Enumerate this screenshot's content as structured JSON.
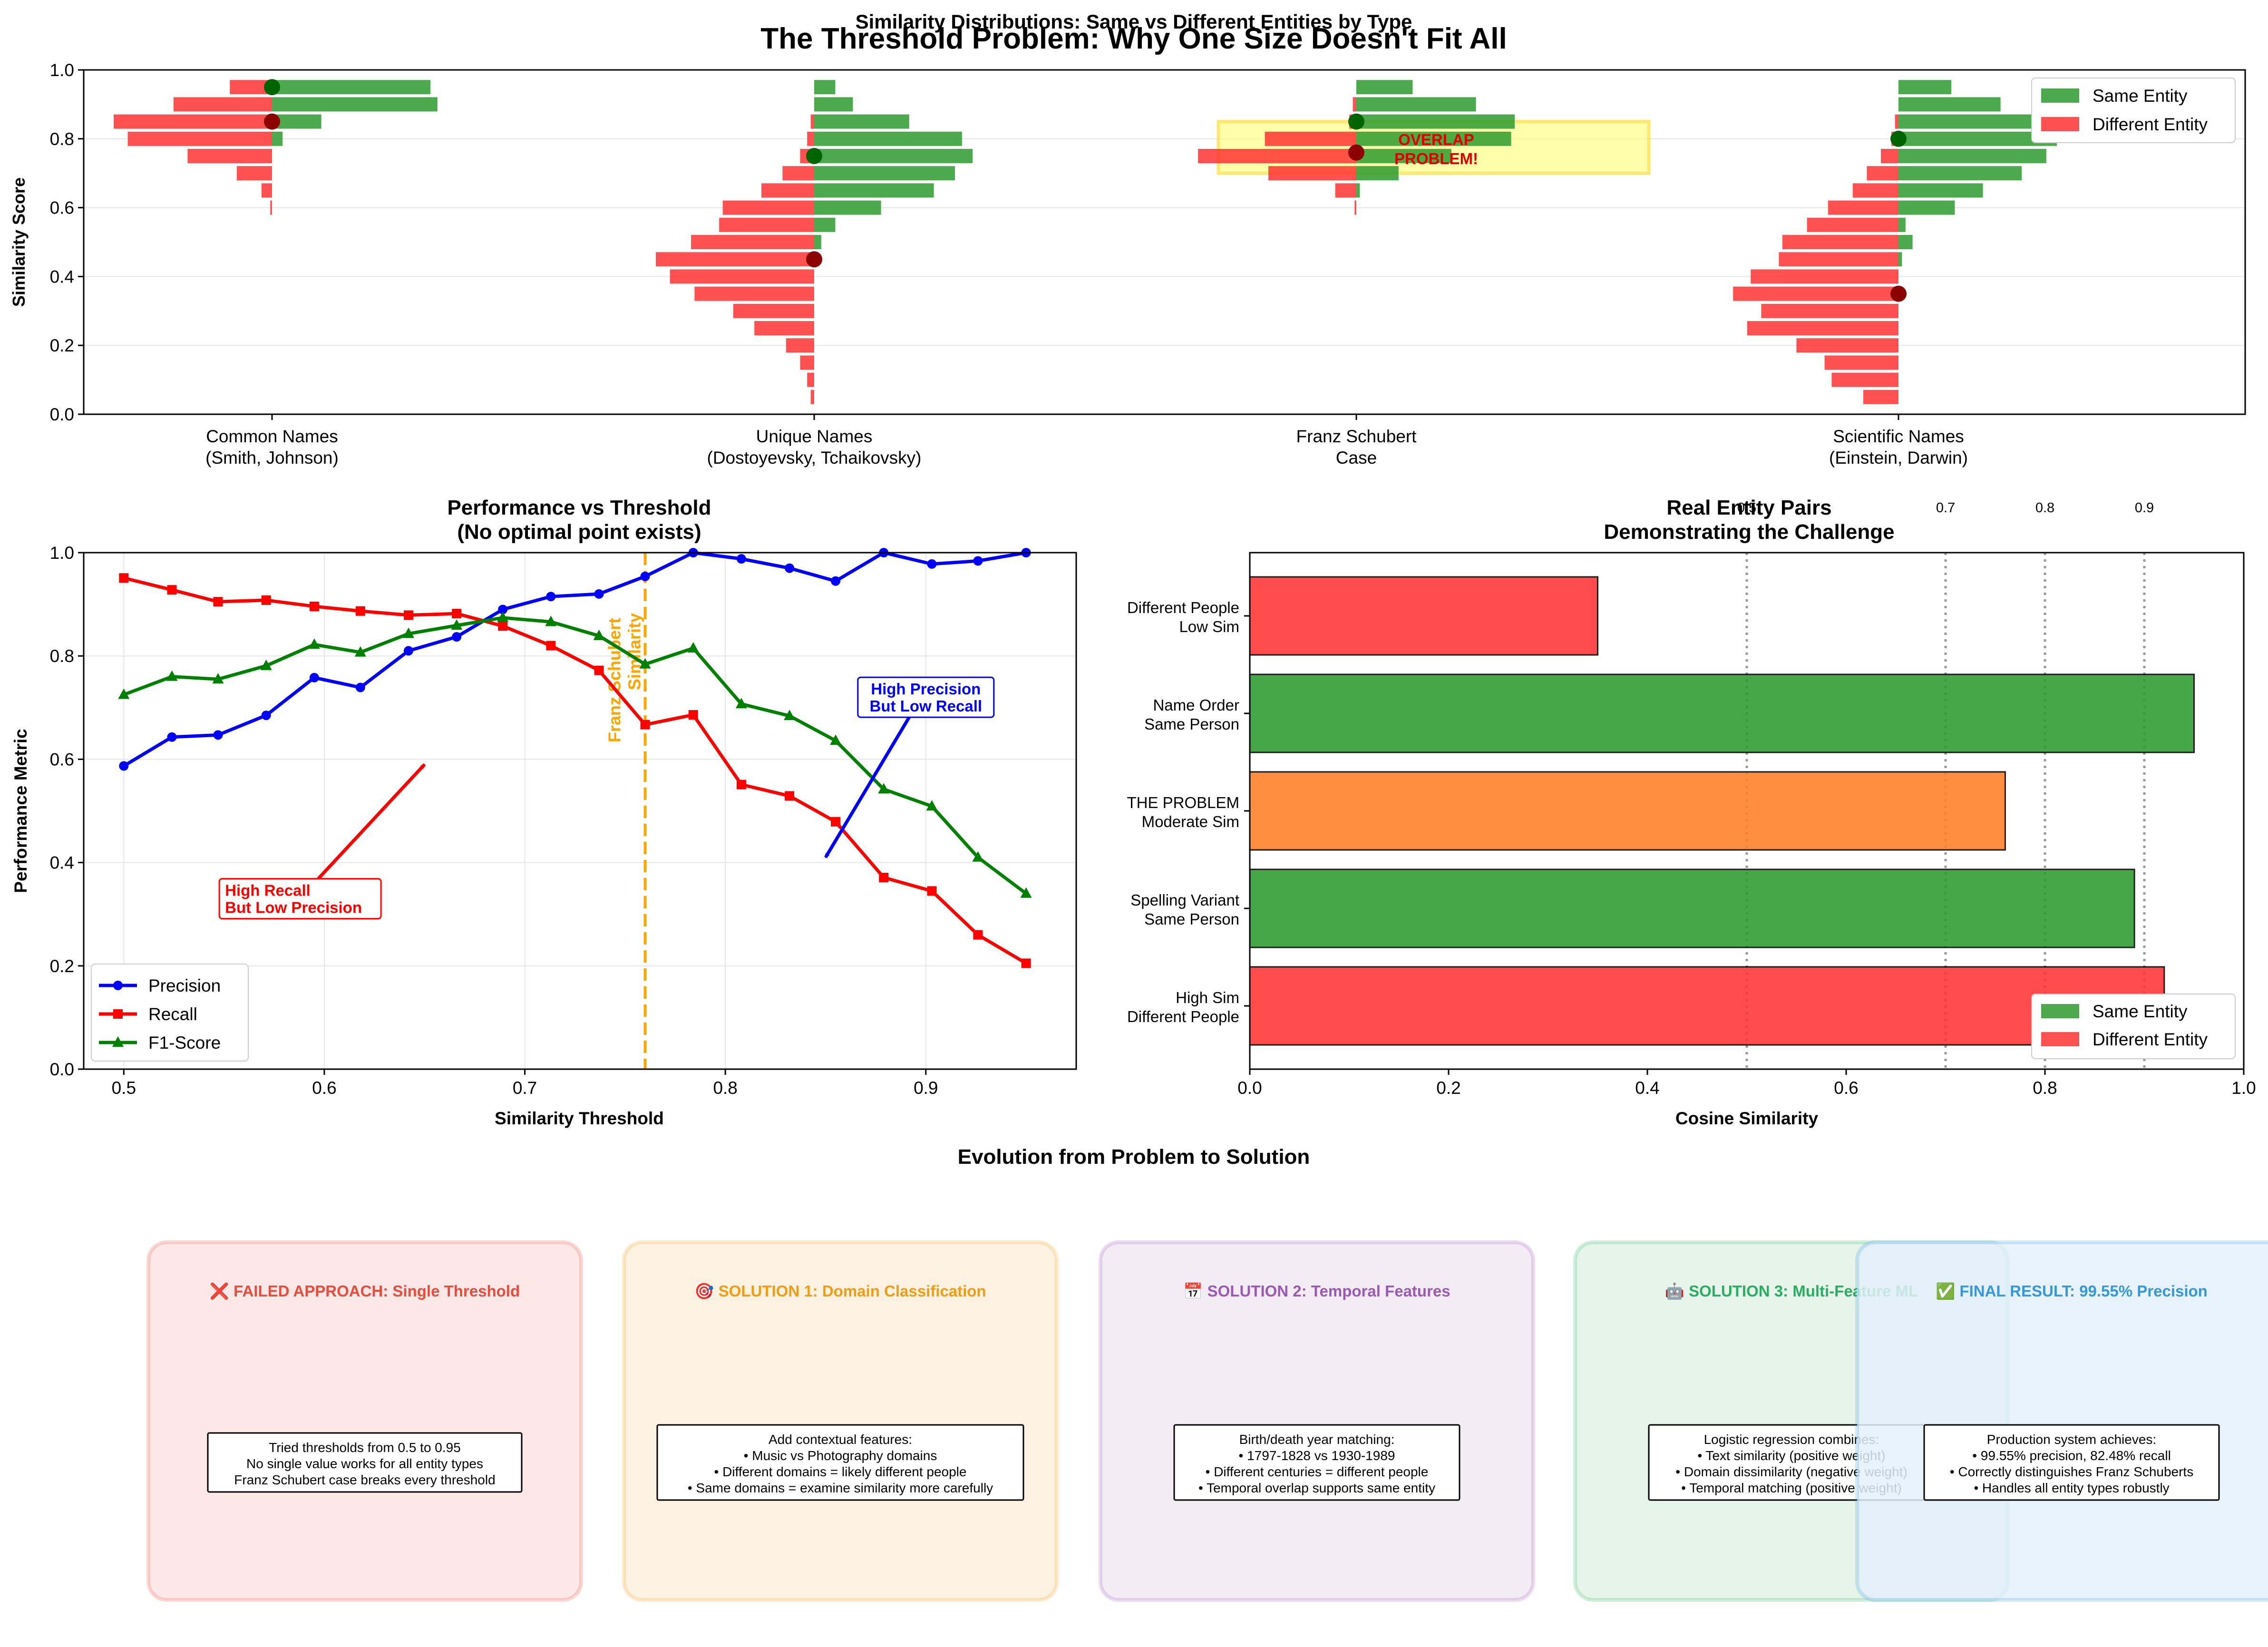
{
  "figure": {
    "suptitle": "The Threshold Problem: Why One Size Doesn't Fit All"
  },
  "colors": {
    "same": "#2e9a2e",
    "different": "#ff3333",
    "problem": "#ff7f27",
    "precision": "#0000ff",
    "recall": "#ff0000",
    "f1": "#008000",
    "schubert_line": "#ffa500",
    "overlap_fill": "#ffff66"
  },
  "chart_data": [
    {
      "id": "distributions",
      "type": "bar",
      "orientation": "horizontal-mirrored",
      "title": "Similarity Distributions: Same vs Different Entities by Type",
      "ylabel": "Similarity Score",
      "ylim": [
        0,
        1
      ],
      "yticks": [
        "0.0",
        "0.2",
        "0.4",
        "0.6",
        "0.8",
        "1.0"
      ],
      "grid": true,
      "legend_position": "top-right",
      "legend": [
        "Same Entity",
        "Different Entity"
      ],
      "groups": [
        {
          "label_line1": "Common Names",
          "label_line2": "(Smith, Johnson)",
          "same_bins": [
            {
              "y": 0.95,
              "count": 45
            },
            {
              "y": 0.9,
              "count": 47
            },
            {
              "y": 0.85,
              "count": 14
            },
            {
              "y": 0.8,
              "count": 3
            }
          ],
          "diff_bins": [
            {
              "y": 0.95,
              "count": 12
            },
            {
              "y": 0.9,
              "count": 28
            },
            {
              "y": 0.85,
              "count": 45
            },
            {
              "y": 0.8,
              "count": 41
            },
            {
              "y": 0.75,
              "count": 24
            },
            {
              "y": 0.7,
              "count": 10
            },
            {
              "y": 0.65,
              "count": 3
            },
            {
              "y": 0.6,
              "count": 0.5
            }
          ],
          "same_mean": 0.95,
          "diff_mean": 0.85
        },
        {
          "label_line1": "Unique Names",
          "label_line2": "(Dostoyevsky, Tchaikovsky)",
          "same_bins": [
            {
              "y": 0.95,
              "count": 6
            },
            {
              "y": 0.9,
              "count": 11
            },
            {
              "y": 0.85,
              "count": 27
            },
            {
              "y": 0.8,
              "count": 42
            },
            {
              "y": 0.75,
              "count": 45
            },
            {
              "y": 0.7,
              "count": 40
            },
            {
              "y": 0.65,
              "count": 34
            },
            {
              "y": 0.6,
              "count": 19
            },
            {
              "y": 0.55,
              "count": 6
            },
            {
              "y": 0.5,
              "count": 2
            }
          ],
          "diff_bins": [
            {
              "y": 0.85,
              "count": 1
            },
            {
              "y": 0.8,
              "count": 2
            },
            {
              "y": 0.75,
              "count": 4
            },
            {
              "y": 0.7,
              "count": 9
            },
            {
              "y": 0.65,
              "count": 15
            },
            {
              "y": 0.6,
              "count": 26
            },
            {
              "y": 0.55,
              "count": 27
            },
            {
              "y": 0.5,
              "count": 35
            },
            {
              "y": 0.45,
              "count": 45
            },
            {
              "y": 0.4,
              "count": 41
            },
            {
              "y": 0.35,
              "count": 34
            },
            {
              "y": 0.3,
              "count": 23
            },
            {
              "y": 0.25,
              "count": 17
            },
            {
              "y": 0.2,
              "count": 8
            },
            {
              "y": 0.15,
              "count": 4
            },
            {
              "y": 0.1,
              "count": 2
            },
            {
              "y": 0.05,
              "count": 1
            }
          ],
          "same_mean": 0.75,
          "diff_mean": 0.45
        },
        {
          "label_line1": "Franz Schubert",
          "label_line2": "Case",
          "same_bins": [
            {
              "y": 0.95,
              "count": 16
            },
            {
              "y": 0.9,
              "count": 34
            },
            {
              "y": 0.85,
              "count": 45
            },
            {
              "y": 0.8,
              "count": 44
            },
            {
              "y": 0.75,
              "count": 27
            },
            {
              "y": 0.7,
              "count": 12
            },
            {
              "y": 0.65,
              "count": 1
            }
          ],
          "diff_bins": [
            {
              "y": 0.9,
              "count": 1
            },
            {
              "y": 0.85,
              "count": 2
            },
            {
              "y": 0.8,
              "count": 26
            },
            {
              "y": 0.75,
              "count": 45
            },
            {
              "y": 0.7,
              "count": 25
            },
            {
              "y": 0.65,
              "count": 6
            },
            {
              "y": 0.6,
              "count": 0.5
            }
          ],
          "same_mean": 0.85,
          "diff_mean": 0.76
        },
        {
          "label_line1": "Scientific Names",
          "label_line2": "(Einstein, Darwin)",
          "same_bins": [
            {
              "y": 0.95,
              "count": 15
            },
            {
              "y": 0.9,
              "count": 29
            },
            {
              "y": 0.85,
              "count": 44
            },
            {
              "y": 0.8,
              "count": 45
            },
            {
              "y": 0.75,
              "count": 42
            },
            {
              "y": 0.7,
              "count": 35
            },
            {
              "y": 0.65,
              "count": 24
            },
            {
              "y": 0.6,
              "count": 16
            },
            {
              "y": 0.55,
              "count": 2
            },
            {
              "y": 0.5,
              "count": 4
            },
            {
              "y": 0.45,
              "count": 1
            }
          ],
          "diff_bins": [
            {
              "y": 0.85,
              "count": 1
            },
            {
              "y": 0.8,
              "count": 2
            },
            {
              "y": 0.75,
              "count": 5
            },
            {
              "y": 0.7,
              "count": 9
            },
            {
              "y": 0.65,
              "count": 13
            },
            {
              "y": 0.6,
              "count": 20
            },
            {
              "y": 0.55,
              "count": 26
            },
            {
              "y": 0.5,
              "count": 33
            },
            {
              "y": 0.45,
              "count": 34
            },
            {
              "y": 0.4,
              "count": 42
            },
            {
              "y": 0.35,
              "count": 47
            },
            {
              "y": 0.3,
              "count": 39
            },
            {
              "y": 0.25,
              "count": 43
            },
            {
              "y": 0.2,
              "count": 29
            },
            {
              "y": 0.15,
              "count": 21
            },
            {
              "y": 0.1,
              "count": 19
            },
            {
              "y": 0.05,
              "count": 10
            }
          ],
          "same_mean": 0.8,
          "diff_mean": 0.35
        }
      ],
      "overlap_annotation": {
        "text_line1": "OVERLAP",
        "text_line2": "PROBLEM!",
        "y_low": 0.7,
        "y_high": 0.85
      }
    },
    {
      "id": "performance",
      "type": "line",
      "title_line1": "Performance vs Threshold",
      "title_line2": "(No optimal point exists)",
      "xlabel": "Similarity Threshold",
      "ylabel": "Performance Metric",
      "xlim": [
        0.48,
        0.975
      ],
      "ylim": [
        0,
        1
      ],
      "xticks": [
        "0.5",
        "0.6",
        "0.7",
        "0.8",
        "0.9"
      ],
      "yticks": [
        "0.0",
        "0.2",
        "0.4",
        "0.6",
        "0.8",
        "1.0"
      ],
      "grid": true,
      "legend_position": "lower-left",
      "x": [
        0.5,
        0.524,
        0.547,
        0.571,
        0.595,
        0.618,
        0.642,
        0.666,
        0.689,
        0.713,
        0.737,
        0.76,
        0.784,
        0.808,
        0.832,
        0.855,
        0.879,
        0.903,
        0.926,
        0.95
      ],
      "series": [
        {
          "name": "Precision",
          "marker": "circle",
          "values": [
            0.587,
            0.643,
            0.647,
            0.685,
            0.758,
            0.739,
            0.81,
            0.837,
            0.89,
            0.915,
            0.92,
            0.954,
            1.0,
            0.988,
            0.97,
            0.945,
            1.0,
            0.978,
            0.984,
            1.0
          ]
        },
        {
          "name": "Recall",
          "marker": "square",
          "values": [
            0.951,
            0.928,
            0.905,
            0.908,
            0.896,
            0.887,
            0.879,
            0.882,
            0.858,
            0.82,
            0.772,
            0.667,
            0.686,
            0.551,
            0.529,
            0.479,
            0.371,
            0.345,
            0.26,
            0.205
          ]
        },
        {
          "name": "F1-Score",
          "marker": "triangle",
          "values": [
            0.725,
            0.76,
            0.755,
            0.781,
            0.822,
            0.807,
            0.843,
            0.859,
            0.874,
            0.866,
            0.839,
            0.784,
            0.815,
            0.707,
            0.684,
            0.636,
            0.542,
            0.509,
            0.41,
            0.34
          ]
        }
      ],
      "threshold_line": {
        "x": 0.76,
        "label_line1": "Franz Schubert",
        "label_line2": "Similarity"
      },
      "annotations": [
        {
          "text_line1": "High Recall",
          "text_line2": "But Low Precision",
          "arrow_to": [
            0.65,
            0.59
          ],
          "text_at": [
            0.55,
            0.33
          ]
        },
        {
          "text_line1": "High Precision",
          "text_line2": "But Low Recall",
          "arrow_to": [
            0.85,
            0.41
          ],
          "text_at": [
            0.9,
            0.72
          ]
        }
      ]
    },
    {
      "id": "pairs",
      "type": "bar",
      "orientation": "horizontal",
      "title_line1": "Real Entity Pairs",
      "title_line2": "Demonstrating the Challenge",
      "xlabel": "Cosine Similarity",
      "xlim": [
        0,
        1
      ],
      "xticks": [
        "0.0",
        "0.2",
        "0.4",
        "0.6",
        "0.8",
        "1.0"
      ],
      "legend_position": "lower-right",
      "legend": [
        "Same Entity",
        "Different Entity"
      ],
      "reference_lines": [
        {
          "x": 0.5,
          "label": "0.5"
        },
        {
          "x": 0.7,
          "label": "0.7"
        },
        {
          "x": 0.8,
          "label": "0.8"
        },
        {
          "x": 0.9,
          "label": "0.9"
        }
      ],
      "bars": [
        {
          "label_line1": "Different People",
          "label_line2": "Low Sim",
          "value": 0.35,
          "kind": "different"
        },
        {
          "label_line1": "Name Order",
          "label_line2": "Same Person",
          "value": 0.95,
          "kind": "same"
        },
        {
          "label_line1": "THE PROBLEM",
          "label_line2": "Moderate Sim",
          "value": 0.76,
          "kind": "problem"
        },
        {
          "label_line1": "Spelling Variant",
          "label_line2": "Same Person",
          "value": 0.89,
          "kind": "same"
        },
        {
          "label_line1": "High Sim",
          "label_line2": "Different People",
          "value": 0.92,
          "kind": "different"
        }
      ]
    }
  ],
  "evolution": {
    "title": "Evolution from Problem to Solution",
    "boxes": [
      {
        "heading": "❌ FAILED APPROACH: Single Threshold",
        "color": "#e74c3c",
        "fill": "#fde3e3",
        "lines": [
          "Tried thresholds from 0.5 to 0.95",
          "No single value works for all entity types",
          "Franz Schubert case breaks every threshold"
        ]
      },
      {
        "heading": "🎯 SOLUTION 1: Domain Classification",
        "color": "#f39c12",
        "fill": "#fdf0dd",
        "lines": [
          "Add contextual features:",
          "• Music vs Photography domains",
          "• Different domains = likely different people",
          "• Same domains = examine similarity more carefully"
        ]
      },
      {
        "heading": "📅 SOLUTION 2: Temporal Features",
        "color": "#9b59b6",
        "fill": "#f2e9f4",
        "lines": [
          "Birth/death year matching:",
          "• 1797-1828 vs 1930-1989",
          "• Different centuries = different people",
          "• Temporal overlap supports same entity"
        ]
      },
      {
        "heading": "🤖 SOLUTION 3: Multi-Feature ML",
        "color": "#27ae60",
        "fill": "#e2f3e7",
        "lines": [
          "Logistic regression combines:",
          "• Text similarity (positive weight)",
          "• Domain dissimilarity (negative weight)",
          "• Temporal matching (positive weight)"
        ]
      },
      {
        "heading": "✅ FINAL RESULT: 99.55% Precision",
        "color": "#3498db",
        "fill": "#e3f0fa",
        "lines": [
          "Production system achieves:",
          "• 99.55% precision, 82.48% recall",
          "• Correctly distinguishes Franz Schuberts",
          "• Handles all entity types robustly"
        ]
      }
    ]
  }
}
